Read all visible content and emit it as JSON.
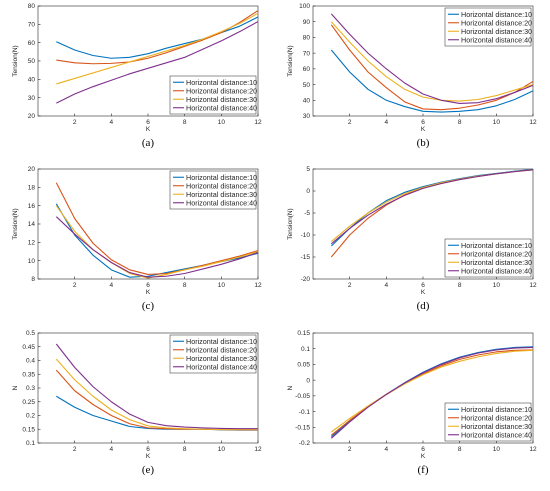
{
  "colors": {
    "Horizontal distance:10": "#0072BD",
    "Horizontal distance:20": "#D95319",
    "Horizontal distance:30": "#EDB120",
    "Horizontal distance:40": "#7E2F8E"
  },
  "chart_data": [
    {
      "type": "line",
      "caption": "(a)",
      "xlabel": "K",
      "ylabel": "Tension(N)",
      "xlim": [
        0,
        12
      ],
      "ylim": [
        20,
        80
      ],
      "xticks": [
        2,
        4,
        6,
        8,
        10,
        12
      ],
      "yticks": [
        20,
        30,
        40,
        50,
        60,
        70,
        80
      ],
      "xtick_labels": [
        "2",
        "4",
        "6",
        "8",
        "10",
        "12"
      ],
      "ytick_labels": [
        "20",
        "30",
        "40",
        "50",
        "60",
        "70",
        "80"
      ],
      "legend_loc": "bottom-right",
      "x": [
        1,
        2,
        3,
        4,
        5,
        6,
        7,
        8,
        9,
        10,
        11,
        12
      ],
      "series": [
        {
          "name": "Horizontal distance:10",
          "values": [
            60.5,
            56,
            53,
            51.5,
            52,
            54,
            57,
            59.5,
            62,
            65.5,
            69,
            74
          ]
        },
        {
          "name": "Horizontal distance:20",
          "values": [
            50.5,
            49,
            48.5,
            48.7,
            49.5,
            51.5,
            54.5,
            58,
            61.5,
            65.5,
            71,
            77.5
          ]
        },
        {
          "name": "Horizontal distance:30",
          "values": [
            37.5,
            40.5,
            43.5,
            46.5,
            49.5,
            52.5,
            55.5,
            58.5,
            62,
            66,
            70.5,
            76
          ]
        },
        {
          "name": "Horizontal distance:40",
          "values": [
            27,
            32,
            36,
            39.5,
            43,
            46,
            49,
            52,
            56.5,
            61,
            66,
            71.5
          ]
        }
      ]
    },
    {
      "type": "line",
      "caption": "(b)",
      "xlabel": "K",
      "ylabel": "Tension(N)",
      "xlim": [
        0,
        12
      ],
      "ylim": [
        30,
        100
      ],
      "xticks": [
        2,
        4,
        6,
        8,
        10,
        12
      ],
      "yticks": [
        30,
        40,
        50,
        60,
        70,
        80,
        90,
        100
      ],
      "xtick_labels": [
        "2",
        "4",
        "6",
        "8",
        "10",
        "12"
      ],
      "ytick_labels": [
        "30",
        "40",
        "50",
        "60",
        "70",
        "80",
        "90",
        "100"
      ],
      "legend_loc": "top-right",
      "x": [
        1,
        2,
        3,
        4,
        5,
        6,
        7,
        8,
        9,
        10,
        11,
        12
      ],
      "series": [
        {
          "name": "Horizontal distance:10",
          "values": [
            72,
            58,
            47,
            40,
            36,
            33,
            32.5,
            33,
            34,
            36.5,
            40.5,
            46
          ]
        },
        {
          "name": "Horizontal distance:20",
          "values": [
            88,
            72,
            58,
            48,
            39,
            34.5,
            34,
            35,
            37,
            40,
            45,
            52
          ]
        },
        {
          "name": "Horizontal distance:30",
          "values": [
            90,
            77,
            65,
            55,
            47,
            42,
            40,
            39.5,
            40.5,
            43,
            46.5,
            50
          ]
        },
        {
          "name": "Horizontal distance:40",
          "values": [
            95,
            82,
            70,
            60,
            51,
            44,
            40,
            38,
            38.5,
            41,
            45,
            49.5
          ]
        }
      ]
    },
    {
      "type": "line",
      "caption": "(c)",
      "xlabel": "K",
      "ylabel": "Tension(N)",
      "xlim": [
        0,
        12
      ],
      "ylim": [
        8,
        20
      ],
      "xticks": [
        2,
        4,
        6,
        8,
        10,
        12
      ],
      "yticks": [
        8,
        10,
        12,
        14,
        16,
        18,
        20
      ],
      "xtick_labels": [
        "2",
        "4",
        "6",
        "8",
        "10",
        "12"
      ],
      "ytick_labels": [
        "8",
        "10",
        "12",
        "14",
        "16",
        "18",
        "20"
      ],
      "legend_loc": "top-right",
      "x": [
        1,
        2,
        3,
        4,
        5,
        6,
        7,
        8,
        9,
        10,
        11,
        12
      ],
      "series": [
        {
          "name": "Horizontal distance:10",
          "values": [
            16.2,
            12.8,
            10.6,
            9.0,
            8.2,
            8.3,
            8.7,
            9.1,
            9.5,
            9.9,
            10.3,
            10.8
          ]
        },
        {
          "name": "Horizontal distance:20",
          "values": [
            18.5,
            14.6,
            11.9,
            10.1,
            9.0,
            8.5,
            8.6,
            9.0,
            9.5,
            10.0,
            10.5,
            11.1
          ]
        },
        {
          "name": "Horizontal distance:30",
          "values": [
            16.0,
            13.2,
            11.2,
            9.8,
            8.6,
            8.1,
            8.5,
            9.0,
            9.4,
            9.9,
            10.4,
            11.0
          ]
        },
        {
          "name": "Horizontal distance:40",
          "values": [
            14.8,
            12.9,
            11.2,
            9.8,
            8.7,
            8.2,
            8.3,
            8.6,
            9.1,
            9.6,
            10.2,
            10.9
          ]
        }
      ]
    },
    {
      "type": "line",
      "caption": "(d)",
      "xlabel": "K",
      "ylabel": "Tension(N)",
      "xlim": [
        0,
        12
      ],
      "ylim": [
        -20,
        5
      ],
      "xticks": [
        2,
        4,
        6,
        8,
        10,
        12
      ],
      "yticks": [
        -20,
        -15,
        -10,
        -5,
        0,
        5
      ],
      "xtick_labels": [
        "2",
        "4",
        "6",
        "8",
        "10",
        "12"
      ],
      "ytick_labels": [
        "-20",
        "-15",
        "-10",
        "-5",
        "0",
        "5"
      ],
      "legend_loc": "bottom-right",
      "x": [
        1,
        2,
        3,
        4,
        5,
        6,
        7,
        8,
        9,
        10,
        11,
        12
      ],
      "series": [
        {
          "name": "Horizontal distance:10",
          "values": [
            -12.5,
            -8.5,
            -5,
            -2.2,
            -0.3,
            1.0,
            2.0,
            2.8,
            3.5,
            4.0,
            4.5,
            4.9
          ]
        },
        {
          "name": "Horizontal distance:20",
          "values": [
            -15,
            -10,
            -6.2,
            -3.2,
            -0.9,
            0.7,
            1.7,
            2.6,
            3.3,
            3.9,
            4.4,
            4.8
          ]
        },
        {
          "name": "Horizontal distance:30",
          "values": [
            -11.5,
            -8,
            -5,
            -2.5,
            -0.6,
            0.8,
            1.9,
            2.7,
            3.4,
            3.9,
            4.4,
            4.8
          ]
        },
        {
          "name": "Horizontal distance:40",
          "values": [
            -12,
            -8.5,
            -5.5,
            -3,
            -1,
            0.6,
            1.7,
            2.6,
            3.3,
            3.9,
            4.4,
            4.8
          ]
        }
      ]
    },
    {
      "type": "line",
      "caption": "(e)",
      "xlabel": "K",
      "ylabel": "N",
      "xlim": [
        0,
        12
      ],
      "ylim": [
        0.1,
        0.5
      ],
      "xticks": [
        2,
        4,
        6,
        8,
        10,
        12
      ],
      "yticks": [
        0.1,
        0.15,
        0.2,
        0.25,
        0.3,
        0.35,
        0.4,
        0.45,
        0.5
      ],
      "xtick_labels": [
        "2",
        "4",
        "6",
        "8",
        "10",
        "12"
      ],
      "ytick_labels": [
        "0.1",
        "0.15",
        "0.2",
        "0.25",
        "0.3",
        "0.35",
        "0.4",
        "0.45",
        "0.5"
      ],
      "legend_loc": "top-right",
      "x": [
        1,
        2,
        3,
        4,
        5,
        6,
        7,
        8,
        9,
        10,
        11,
        12
      ],
      "series": [
        {
          "name": "Horizontal distance:10",
          "values": [
            0.27,
            0.23,
            0.2,
            0.18,
            0.16,
            0.153,
            0.15,
            0.15,
            0.15,
            0.148,
            0.147,
            0.147
          ]
        },
        {
          "name": "Horizontal distance:20",
          "values": [
            0.365,
            0.29,
            0.24,
            0.2,
            0.17,
            0.155,
            0.152,
            0.15,
            0.15,
            0.149,
            0.148,
            0.148
          ]
        },
        {
          "name": "Horizontal distance:30",
          "values": [
            0.405,
            0.33,
            0.27,
            0.22,
            0.185,
            0.162,
            0.155,
            0.152,
            0.15,
            0.149,
            0.149,
            0.149
          ]
        },
        {
          "name": "Horizontal distance:40",
          "values": [
            0.46,
            0.375,
            0.305,
            0.25,
            0.205,
            0.175,
            0.163,
            0.158,
            0.155,
            0.153,
            0.152,
            0.152
          ]
        }
      ]
    },
    {
      "type": "line",
      "caption": "(f)",
      "xlabel": "K",
      "ylabel": "N",
      "xlim": [
        0,
        12
      ],
      "ylim": [
        -0.2,
        0.15
      ],
      "xticks": [
        2,
        4,
        6,
        8,
        10,
        12
      ],
      "yticks": [
        -0.2,
        -0.15,
        -0.1,
        -0.05,
        0,
        0.05,
        0.1,
        0.15
      ],
      "xtick_labels": [
        "2",
        "4",
        "6",
        "8",
        "10",
        "12"
      ],
      "ytick_labels": [
        "-0.2",
        "-0.15",
        "-0.1",
        "-0.05",
        "0",
        "0.05",
        "0.1",
        "0.15"
      ],
      "legend_loc": "bottom-right",
      "x": [
        1,
        2,
        3,
        4,
        5,
        6,
        7,
        8,
        9,
        10,
        11,
        12
      ],
      "series": [
        {
          "name": "Horizontal distance:10",
          "values": [
            -0.18,
            -0.13,
            -0.085,
            -0.045,
            -0.008,
            0.025,
            0.052,
            0.073,
            0.088,
            0.098,
            0.104,
            0.106
          ]
        },
        {
          "name": "Horizontal distance:20",
          "values": [
            -0.175,
            -0.128,
            -0.085,
            -0.046,
            -0.011,
            0.02,
            0.046,
            0.066,
            0.08,
            0.09,
            0.095,
            0.096
          ]
        },
        {
          "name": "Horizontal distance:30",
          "values": [
            -0.165,
            -0.122,
            -0.082,
            -0.045,
            -0.012,
            0.017,
            0.042,
            0.06,
            0.074,
            0.085,
            0.092,
            0.095
          ]
        },
        {
          "name": "Horizontal distance:40",
          "values": [
            -0.185,
            -0.133,
            -0.086,
            -0.045,
            -0.009,
            0.023,
            0.05,
            0.071,
            0.086,
            0.096,
            0.102,
            0.104
          ]
        }
      ]
    }
  ]
}
